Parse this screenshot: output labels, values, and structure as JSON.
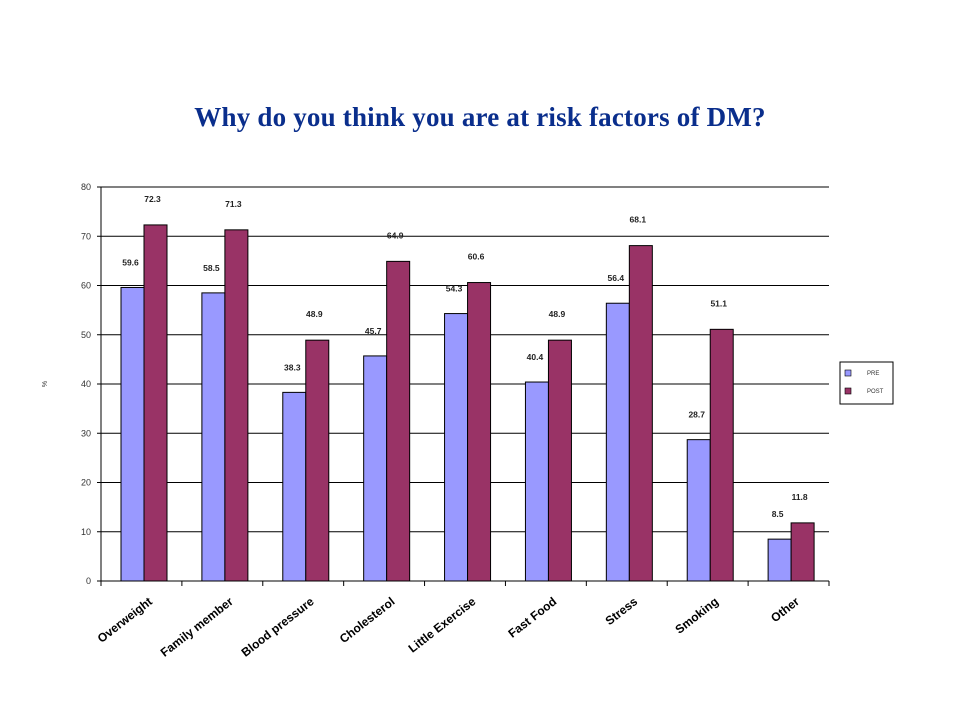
{
  "chart_data": {
    "type": "bar",
    "title": "Why do you think you are at risk factors of DM?",
    "ylabel": "%",
    "xlabel": "",
    "ylim": [
      0,
      80
    ],
    "yticks": [
      0,
      10,
      20,
      30,
      40,
      50,
      60,
      70,
      80
    ],
    "grid": true,
    "legend_position": "right",
    "categories": [
      "Overweight",
      "Family member",
      "Blood pressure",
      "Cholesterol",
      "Little Exercise",
      "Fast Food",
      "Stress",
      "Smoking",
      "Other"
    ],
    "series": [
      {
        "name": "PRE",
        "color": "#9999ff",
        "values": [
          59.6,
          58.5,
          38.3,
          45.7,
          54.3,
          40.4,
          56.4,
          28.7,
          8.5
        ]
      },
      {
        "name": "POST",
        "color": "#993366",
        "values": [
          72.3,
          71.3,
          48.9,
          64.9,
          60.6,
          48.9,
          68.1,
          51.1,
          11.8
        ]
      }
    ]
  }
}
